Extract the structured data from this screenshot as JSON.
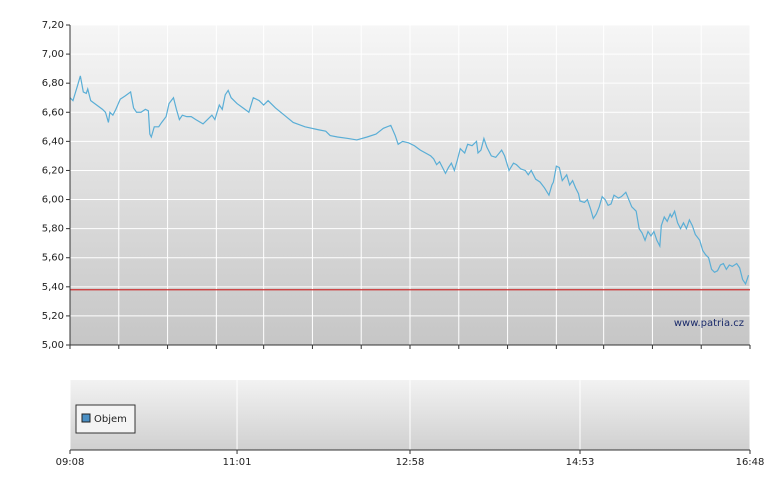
{
  "chart_data": {
    "type": "line",
    "color": "#5aaed6",
    "x": [
      548,
      550,
      553,
      555,
      557,
      559,
      560,
      562,
      566,
      570,
      572,
      574,
      575,
      577,
      579,
      582,
      585,
      589,
      591,
      593,
      596,
      599,
      601,
      602,
      603,
      605,
      608,
      610,
      613,
      615,
      618,
      620,
      622,
      624,
      627,
      630,
      633,
      638,
      641,
      644,
      646,
      649,
      651,
      653,
      655,
      657,
      661,
      665,
      669,
      672,
      676,
      679,
      682,
      687,
      693,
      699,
      707,
      716,
      721,
      724,
      729,
      736,
      742,
      749,
      755,
      760,
      765,
      768,
      770,
      773,
      777,
      781,
      785,
      792,
      794,
      796,
      798,
      802,
      804,
      806,
      808,
      810,
      812,
      815,
      817,
      820,
      823,
      824,
      826,
      828,
      830,
      833,
      836,
      840,
      842,
      845,
      848,
      850,
      853,
      856,
      858,
      860,
      863,
      866,
      869,
      872,
      874,
      875,
      877,
      879,
      881,
      884,
      886,
      888,
      890,
      892,
      893,
      896,
      898,
      900,
      902,
      904,
      906,
      908,
      910,
      912,
      914,
      916,
      919,
      921,
      924,
      926,
      928,
      931,
      933,
      935,
      937,
      939,
      941,
      943,
      945,
      947,
      948,
      950,
      952,
      954,
      955,
      957,
      959,
      961,
      963,
      965,
      967,
      969,
      971,
      974,
      976,
      978,
      980,
      982,
      984,
      986,
      988,
      990,
      992,
      994,
      996,
      999,
      1001,
      1003,
      1005,
      1007
    ],
    "values": [
      6.7,
      6.68,
      6.78,
      6.85,
      6.74,
      6.73,
      6.76,
      6.68,
      6.65,
      6.62,
      6.6,
      6.53,
      6.6,
      6.58,
      6.62,
      6.69,
      6.71,
      6.74,
      6.63,
      6.6,
      6.6,
      6.62,
      6.61,
      6.45,
      6.43,
      6.5,
      6.5,
      6.53,
      6.57,
      6.66,
      6.7,
      6.62,
      6.55,
      6.58,
      6.57,
      6.57,
      6.55,
      6.52,
      6.55,
      6.58,
      6.55,
      6.65,
      6.62,
      6.72,
      6.75,
      6.7,
      6.66,
      6.63,
      6.6,
      6.7,
      6.68,
      6.65,
      6.68,
      6.63,
      6.58,
      6.53,
      6.5,
      6.48,
      6.47,
      6.44,
      6.43,
      6.42,
      6.41,
      6.43,
      6.45,
      6.49,
      6.51,
      6.44,
      6.38,
      6.4,
      6.39,
      6.37,
      6.34,
      6.3,
      6.28,
      6.24,
      6.26,
      6.18,
      6.22,
      6.25,
      6.2,
      6.27,
      6.35,
      6.32,
      6.38,
      6.37,
      6.4,
      6.32,
      6.34,
      6.42,
      6.36,
      6.3,
      6.29,
      6.34,
      6.3,
      6.2,
      6.25,
      6.24,
      6.21,
      6.2,
      6.17,
      6.2,
      6.14,
      6.12,
      6.08,
      6.03,
      6.1,
      6.12,
      6.23,
      6.22,
      6.13,
      6.17,
      6.1,
      6.13,
      6.08,
      6.04,
      5.99,
      5.98,
      6.0,
      5.94,
      5.87,
      5.9,
      5.95,
      6.02,
      6.0,
      5.96,
      5.97,
      6.03,
      6.01,
      6.02,
      6.05,
      6.0,
      5.95,
      5.92,
      5.8,
      5.77,
      5.72,
      5.78,
      5.75,
      5.78,
      5.72,
      5.68,
      5.82,
      5.88,
      5.85,
      5.9,
      5.88,
      5.92,
      5.84,
      5.8,
      5.84,
      5.8,
      5.86,
      5.82,
      5.76,
      5.72,
      5.65,
      5.62,
      5.6,
      5.52,
      5.5,
      5.51,
      5.55,
      5.56,
      5.52,
      5.55,
      5.54,
      5.56,
      5.53,
      5.45,
      5.42,
      5.48
    ],
    "xlim": [
      548,
      1008
    ],
    "xticks": [
      {
        "value": 548,
        "label": "09:08"
      },
      {
        "value": 661,
        "label": "11:01"
      },
      {
        "value": 778,
        "label": "12:58"
      },
      {
        "value": 893,
        "label": "14:53"
      },
      {
        "value": 1008,
        "label": "16:48"
      }
    ],
    "minor_xticks": [
      548,
      581,
      614,
      647,
      679,
      712,
      745,
      778,
      811,
      844,
      877,
      909,
      942,
      975,
      1008
    ],
    "ylim": [
      5.0,
      7.2
    ],
    "yticks": [
      {
        "value": 5.0,
        "label": "5,00"
      },
      {
        "value": 5.2,
        "label": "5,20"
      },
      {
        "value": 5.4,
        "label": "5,40"
      },
      {
        "value": 5.6,
        "label": "5,60"
      },
      {
        "value": 5.8,
        "label": "5,80"
      },
      {
        "value": 6.0,
        "label": "6,00"
      },
      {
        "value": 6.2,
        "label": "6,20"
      },
      {
        "value": 6.4,
        "label": "6,40"
      },
      {
        "value": 6.6,
        "label": "6,60"
      },
      {
        "value": 6.8,
        "label": "6,80"
      },
      {
        "value": 7.0,
        "label": "7,00"
      },
      {
        "value": 7.2,
        "label": "7,20"
      }
    ],
    "grid": true,
    "reference_line": {
      "value": 5.38,
      "color": "#cc3333"
    },
    "watermark": "www.patria.cz",
    "volume_legend": {
      "label": "Objem",
      "color": "#4a8fc4"
    }
  }
}
